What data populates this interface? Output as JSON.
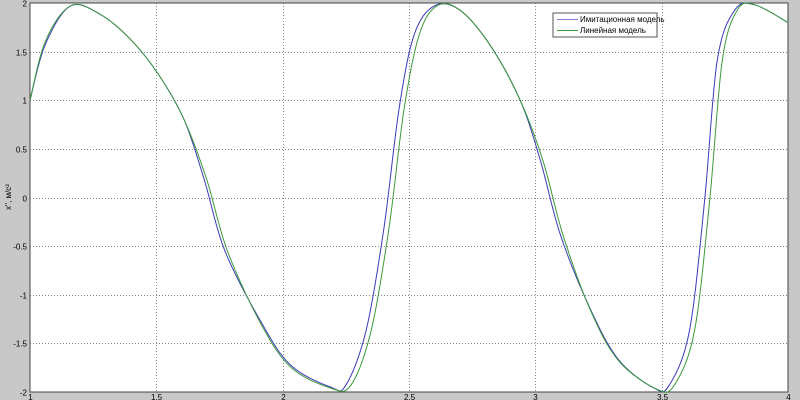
{
  "chart_data": {
    "type": "line",
    "title": "",
    "xlabel": "",
    "ylabel": "x'', м/с²",
    "xlim": [
      1,
      4
    ],
    "ylim": [
      -2,
      2
    ],
    "grid": true,
    "legend_position": "top-right",
    "xticks": [
      "1",
      "1.5",
      "2",
      "2.5",
      "3",
      "3.5",
      "4"
    ],
    "yticks": [
      "-2",
      "-1.5",
      "-1",
      "-0.5",
      "0",
      "0.5",
      "1",
      "1.5",
      "2"
    ],
    "series": [
      {
        "name": "Имитационная модель",
        "color": "#3b3bb8",
        "x": [
          1.0,
          1.06,
          1.16,
          1.28,
          1.4,
          1.51,
          1.61,
          1.69,
          1.77,
          1.91,
          2.03,
          2.19,
          2.25,
          2.33,
          2.4,
          2.46,
          2.52,
          2.6,
          2.7,
          2.82,
          2.94,
          3.02,
          3.1,
          3.22,
          3.33,
          3.47,
          3.53,
          3.61,
          3.67,
          3.72,
          3.79,
          3.87,
          4.0
        ],
        "y": [
          1.0,
          1.57,
          1.97,
          1.88,
          1.62,
          1.26,
          0.8,
          0.18,
          -0.54,
          -1.26,
          -1.72,
          -1.95,
          -1.93,
          -1.37,
          -0.33,
          0.9,
          1.67,
          1.97,
          1.93,
          1.57,
          1.0,
          0.38,
          -0.39,
          -1.16,
          -1.67,
          -1.96,
          -1.93,
          -1.37,
          -0.03,
          1.41,
          1.93,
          1.98,
          1.8
        ]
      },
      {
        "name": "Линейная модель",
        "color": "#3c9a3c",
        "x": [
          1.0,
          1.06,
          1.16,
          1.28,
          1.4,
          1.51,
          1.61,
          1.7,
          1.78,
          1.91,
          2.03,
          2.19,
          2.27,
          2.35,
          2.42,
          2.48,
          2.54,
          2.61,
          2.7,
          2.82,
          2.94,
          3.03,
          3.11,
          3.22,
          3.33,
          3.48,
          3.55,
          3.63,
          3.69,
          3.74,
          3.8,
          3.87,
          4.0
        ],
        "y": [
          1.0,
          1.6,
          1.97,
          1.88,
          1.62,
          1.26,
          0.8,
          0.18,
          -0.54,
          -1.28,
          -1.74,
          -1.96,
          -1.93,
          -1.37,
          -0.33,
          0.9,
          1.67,
          1.97,
          1.93,
          1.57,
          1.0,
          0.38,
          -0.39,
          -1.17,
          -1.68,
          -1.97,
          -1.93,
          -1.37,
          -0.03,
          1.41,
          1.93,
          1.98,
          1.8
        ]
      }
    ]
  }
}
